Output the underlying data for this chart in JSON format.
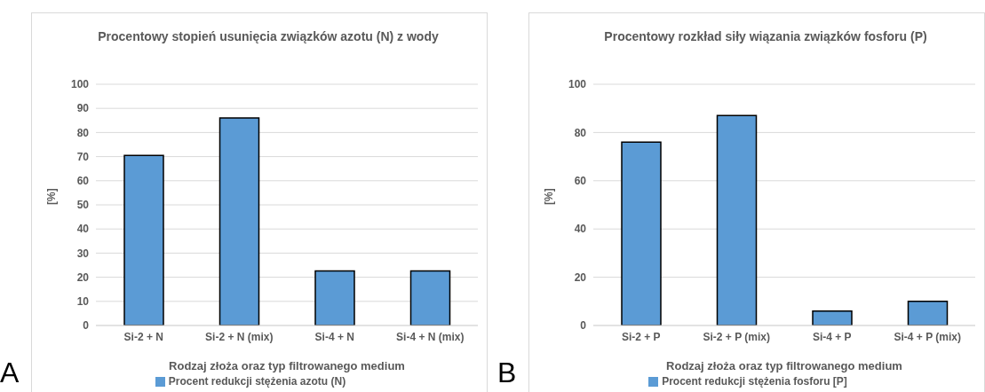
{
  "chart_data": [
    {
      "type": "bar",
      "title": "Procentowy stopień usunięcia związków azotu (N) z wody",
      "xlabel": "Rodzaj złoża oraz typ filtrowanego medium",
      "ylabel": "[%]",
      "categories": [
        "Si-2 + N",
        "Si-2 + N (mix)",
        "Si-4 + N",
        "Si-4 + N (mix)"
      ],
      "series": [
        {
          "name": "Procent redukcji stężenia azotu (N)",
          "color": "#5b9bd5",
          "values": [
            70.5,
            86,
            22.6,
            22.6
          ]
        }
      ],
      "ylim": [
        0,
        100
      ],
      "yticks": [
        0,
        10,
        20,
        30,
        40,
        50,
        60,
        70,
        80,
        90,
        100
      ],
      "grid": "y",
      "legend": "bottom",
      "annotations": [
        "A"
      ]
    },
    {
      "type": "bar",
      "title": "Procentowy rozkład siły wiązania związków fosforu (P)",
      "xlabel": "Rodzaj złoża oraz typ filtrowanego medium",
      "ylabel": "[%]",
      "categories": [
        "Si-2 + P",
        "Si-2 + P (mix)",
        "Si-4 + P",
        "Si-4 + P (mix)"
      ],
      "series": [
        {
          "name": "Procent redukcji stężenia fosforu [P]",
          "color": "#5b9bd5",
          "values": [
            76,
            87,
            6,
            10
          ]
        }
      ],
      "ylim": [
        0,
        100
      ],
      "yticks": [
        0,
        20,
        40,
        60,
        80,
        100
      ],
      "grid": "y",
      "legend": "bottom",
      "annotations": [
        "B"
      ]
    }
  ]
}
